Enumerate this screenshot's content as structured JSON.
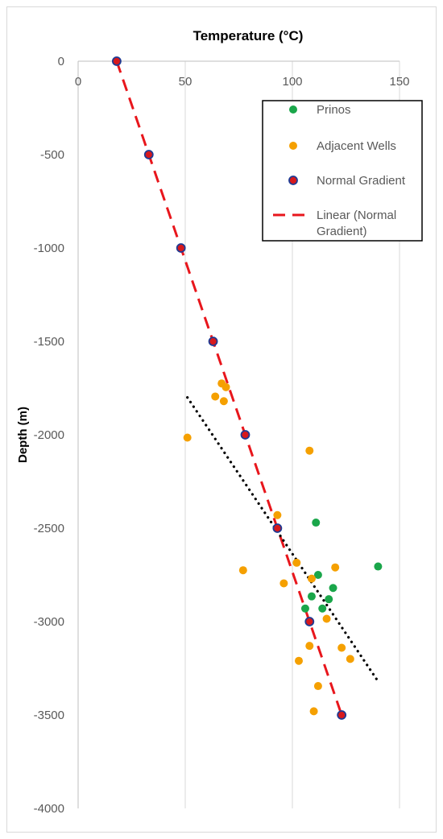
{
  "chart_data": {
    "type": "scatter",
    "title": "Temperature (°C)",
    "xlabel": "Temperature (°C)",
    "ylabel": "Depth (m)",
    "xlim": [
      0,
      150
    ],
    "ylim": [
      -4000,
      0
    ],
    "x_ticks": [
      0,
      50,
      100,
      150
    ],
    "y_ticks": [
      0,
      -500,
      -1000,
      -1500,
      -2000,
      -2500,
      -3000,
      -3500,
      -4000
    ],
    "x_axis_position": "top",
    "grid": "vertical",
    "legend_position": "top-right",
    "series": [
      {
        "name": "Prinos",
        "color": "#1aa64a",
        "marker": "circle",
        "points": [
          [
            111,
            -2470
          ],
          [
            140,
            -2705
          ],
          [
            112,
            -2750
          ],
          [
            119,
            -2820
          ],
          [
            109,
            -2865
          ],
          [
            117,
            -2880
          ],
          [
            114,
            -2930
          ],
          [
            106,
            -2930
          ]
        ]
      },
      {
        "name": "Adjacent Wells",
        "color": "#f5a000",
        "marker": "circle",
        "points": [
          [
            67,
            -1725
          ],
          [
            69,
            -1745
          ],
          [
            64,
            -1795
          ],
          [
            68,
            -1820
          ],
          [
            51,
            -2015
          ],
          [
            108,
            -2085
          ],
          [
            93,
            -2430
          ],
          [
            77,
            -2725
          ],
          [
            102,
            -2685
          ],
          [
            120,
            -2710
          ],
          [
            109,
            -2770
          ],
          [
            96,
            -2795
          ],
          [
            116,
            -2985
          ],
          [
            108,
            -3130
          ],
          [
            123,
            -3140
          ],
          [
            127,
            -3200
          ],
          [
            103,
            -3210
          ],
          [
            112,
            -3345
          ],
          [
            110,
            -3480
          ]
        ]
      },
      {
        "name": "Normal Gradient",
        "color": "#d7191c",
        "edge_color": "#1f3a93",
        "marker": "circle",
        "points": [
          [
            18,
            0
          ],
          [
            33,
            -500
          ],
          [
            48,
            -1000
          ],
          [
            63,
            -1500
          ],
          [
            78,
            -2000
          ],
          [
            93,
            -2500
          ],
          [
            108,
            -3000
          ],
          [
            123,
            -3500
          ]
        ]
      }
    ],
    "trendlines": [
      {
        "name": "Linear (Normal Gradient)",
        "color": "#e8161c",
        "style": "dashed",
        "from": [
          18,
          0
        ],
        "to": [
          123,
          -3500
        ]
      },
      {
        "color": "#000000",
        "style": "dotted",
        "from": [
          51,
          -1800
        ],
        "to": [
          140,
          -3320
        ]
      }
    ],
    "legend": [
      "Prinos",
      "Adjacent Wells",
      "Normal Gradient",
      "Linear (Normal Gradient)"
    ],
    "legend_last_lines": [
      "Linear (Normal",
      "Gradient)"
    ]
  }
}
